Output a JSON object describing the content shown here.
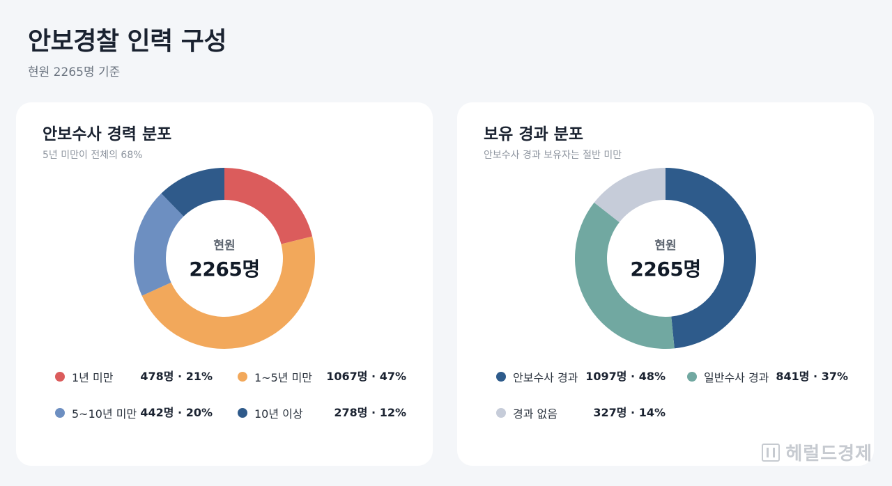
{
  "page": {
    "title": "안보경찰 인력 구성",
    "subtitle": "현원 2265명 기준"
  },
  "chart_data": [
    {
      "type": "pie",
      "title": "안보수사 경력 분포",
      "subtitle": "5년 미만이 전체의 68%",
      "center_label": "현원",
      "center_value": "2265명",
      "series": [
        {
          "name": "1년 미만",
          "value": 478,
          "percent": 21,
          "color": "#db5c5c",
          "display": "478명 · 21%"
        },
        {
          "name": "1~5년 미만",
          "value": 1067,
          "percent": 47,
          "color": "#f2a85b",
          "display": "1067명 · 47%"
        },
        {
          "name": "5~10년 미만",
          "value": 442,
          "percent": 20,
          "color": "#6d8fc1",
          "display": "442명 · 20%"
        },
        {
          "name": "10년 이상",
          "value": 278,
          "percent": 12,
          "color": "#2f5a8a",
          "display": "278명 · 12%"
        }
      ]
    },
    {
      "type": "pie",
      "title": "보유 경과 분포",
      "subtitle": "안보수사 경과 보유자는 절반 미만",
      "center_label": "현원",
      "center_value": "2265명",
      "series": [
        {
          "name": "안보수사 경과",
          "value": 1097,
          "percent": 48,
          "color": "#2e5b8b",
          "display": "1097명 · 48%"
        },
        {
          "name": "일반수사 경과",
          "value": 841,
          "percent": 37,
          "color": "#71a8a1",
          "display": "841명 · 37%"
        },
        {
          "name": "경과 없음",
          "value": 327,
          "percent": 14,
          "color": "#c6ccd9",
          "display": "327명 · 14%"
        }
      ]
    }
  ],
  "watermark": "헤럴드경제"
}
